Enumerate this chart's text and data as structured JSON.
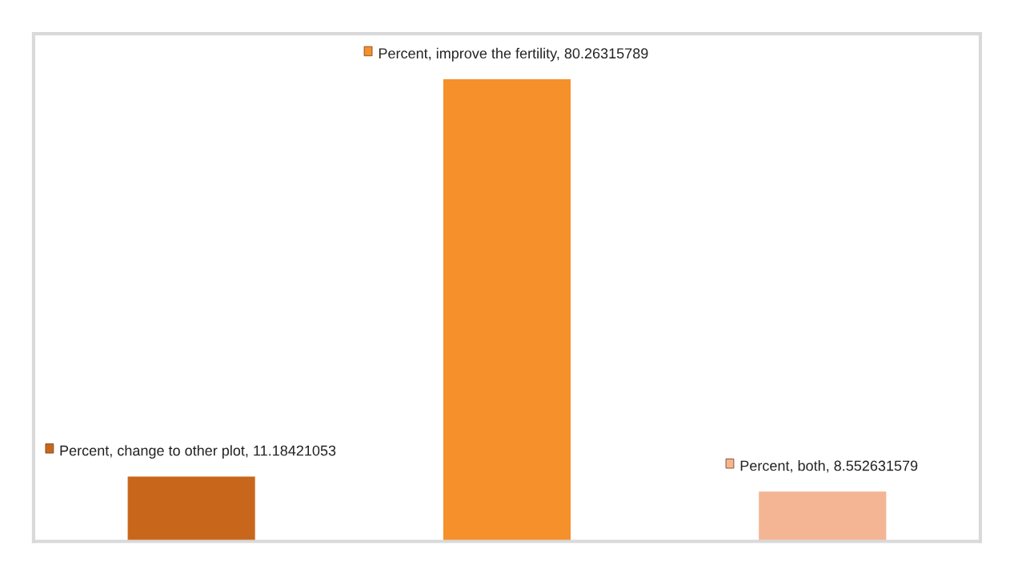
{
  "chart_data": {
    "type": "bar",
    "categories": [
      null,
      null,
      null
    ],
    "values": [
      11.18421053,
      80.26315789,
      8.552631579
    ],
    "colors": [
      "#c8671c",
      "#f5902a",
      "#f4b594"
    ],
    "value_labels": [
      "Percent, change to other plot, 11.18421053",
      "Percent, improve the fertility, 80.26315789",
      "Percent, both, 8.552631579"
    ],
    "relative": false,
    "grid": false,
    "legend": false,
    "tick_labels": false
  }
}
